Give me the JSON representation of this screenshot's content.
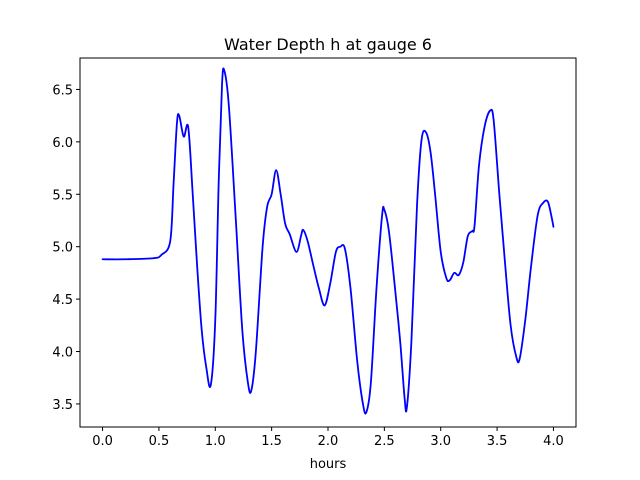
{
  "chart_data": {
    "type": "line",
    "title": "Water Depth h at gauge 6",
    "xlabel": "hours",
    "ylabel": "",
    "xlim": [
      -0.2,
      4.2
    ],
    "ylim": [
      3.28,
      6.8
    ],
    "x_ticks": [
      "0.0",
      "0.5",
      "1.0",
      "1.5",
      "2.0",
      "2.5",
      "3.0",
      "3.5",
      "4.0"
    ],
    "y_ticks": [
      "3.5",
      "4.0",
      "4.5",
      "5.0",
      "5.5",
      "6.0",
      "6.5"
    ],
    "grid": false,
    "legend": "none",
    "series": [
      {
        "color": "#0000ff",
        "points": [
          [
            0.0,
            4.88
          ],
          [
            0.2,
            4.88
          ],
          [
            0.45,
            4.89
          ],
          [
            0.52,
            4.92
          ],
          [
            0.6,
            5.05
          ],
          [
            0.63,
            5.6
          ],
          [
            0.66,
            6.18
          ],
          [
            0.68,
            6.25
          ],
          [
            0.72,
            6.05
          ],
          [
            0.76,
            6.14
          ],
          [
            0.8,
            5.5
          ],
          [
            0.84,
            4.8
          ],
          [
            0.88,
            4.2
          ],
          [
            0.92,
            3.85
          ],
          [
            0.96,
            3.68
          ],
          [
            1.0,
            4.3
          ],
          [
            1.03,
            5.6
          ],
          [
            1.06,
            6.55
          ],
          [
            1.08,
            6.68
          ],
          [
            1.12,
            6.35
          ],
          [
            1.18,
            5.3
          ],
          [
            1.24,
            4.2
          ],
          [
            1.29,
            3.7
          ],
          [
            1.32,
            3.63
          ],
          [
            1.36,
            4.0
          ],
          [
            1.42,
            5.0
          ],
          [
            1.46,
            5.38
          ],
          [
            1.5,
            5.5
          ],
          [
            1.54,
            5.73
          ],
          [
            1.58,
            5.5
          ],
          [
            1.62,
            5.22
          ],
          [
            1.66,
            5.12
          ],
          [
            1.72,
            4.95
          ],
          [
            1.76,
            5.1
          ],
          [
            1.78,
            5.16
          ],
          [
            1.82,
            5.05
          ],
          [
            1.87,
            4.82
          ],
          [
            1.92,
            4.6
          ],
          [
            1.97,
            4.44
          ],
          [
            2.02,
            4.65
          ],
          [
            2.07,
            4.95
          ],
          [
            2.11,
            5.0
          ],
          [
            2.15,
            4.98
          ],
          [
            2.2,
            4.6
          ],
          [
            2.26,
            3.9
          ],
          [
            2.31,
            3.5
          ],
          [
            2.34,
            3.42
          ],
          [
            2.38,
            3.7
          ],
          [
            2.43,
            4.6
          ],
          [
            2.48,
            5.3
          ],
          [
            2.5,
            5.35
          ],
          [
            2.54,
            5.15
          ],
          [
            2.59,
            4.65
          ],
          [
            2.64,
            4.1
          ],
          [
            2.68,
            3.55
          ],
          [
            2.7,
            3.47
          ],
          [
            2.74,
            4.1
          ],
          [
            2.79,
            5.4
          ],
          [
            2.83,
            6.02
          ],
          [
            2.87,
            6.09
          ],
          [
            2.91,
            5.9
          ],
          [
            2.95,
            5.5
          ],
          [
            3.0,
            4.95
          ],
          [
            3.05,
            4.7
          ],
          [
            3.08,
            4.68
          ],
          [
            3.12,
            4.75
          ],
          [
            3.16,
            4.73
          ],
          [
            3.2,
            4.85
          ],
          [
            3.24,
            5.1
          ],
          [
            3.28,
            5.15
          ],
          [
            3.3,
            5.2
          ],
          [
            3.34,
            5.78
          ],
          [
            3.39,
            6.15
          ],
          [
            3.44,
            6.3
          ],
          [
            3.47,
            6.2
          ],
          [
            3.52,
            5.5
          ],
          [
            3.57,
            4.85
          ],
          [
            3.62,
            4.25
          ],
          [
            3.67,
            3.95
          ],
          [
            3.7,
            3.93
          ],
          [
            3.75,
            4.3
          ],
          [
            3.8,
            4.8
          ],
          [
            3.86,
            5.3
          ],
          [
            3.91,
            5.42
          ],
          [
            3.95,
            5.43
          ],
          [
            3.98,
            5.3
          ],
          [
            4.0,
            5.19
          ]
        ]
      }
    ]
  }
}
